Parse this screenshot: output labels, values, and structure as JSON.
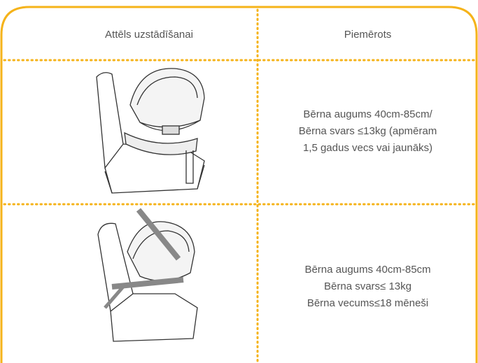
{
  "table": {
    "header": [
      "Attēls uzstādīšanai",
      "Piemērots"
    ],
    "rows": [
      {
        "lines": [
          "Bērna augums 40cm-85cm/",
          "Bērna svars ≤13kg (apmēram",
          "1,5 gadus vecs vai jaunāks)"
        ]
      },
      {
        "lines": [
          "Bērna augums 40cm-85cm",
          "Bērna svars≤ 13kg",
          "Bērna vecums≤18 mēneši"
        ]
      }
    ]
  }
}
